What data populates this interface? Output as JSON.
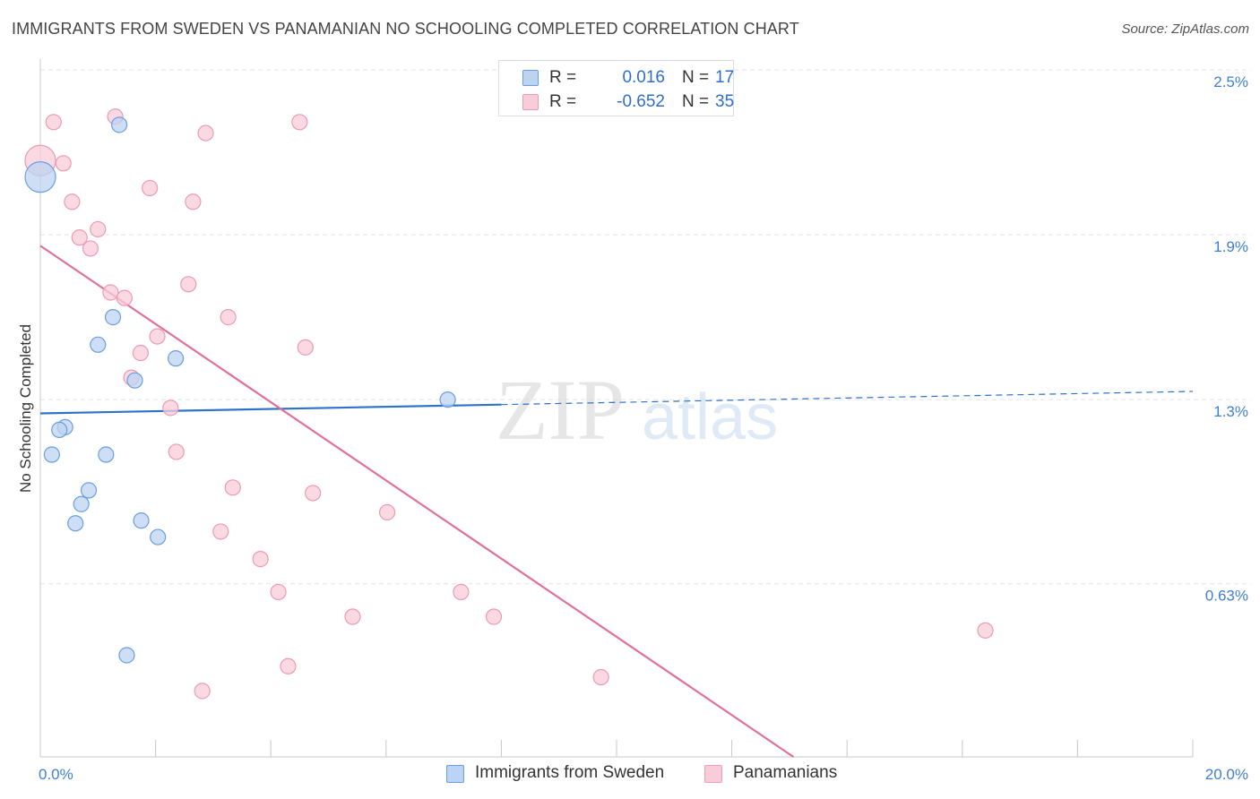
{
  "title": "IMMIGRANTS FROM SWEDEN VS PANAMANIAN NO SCHOOLING COMPLETED CORRELATION CHART",
  "source": "Source: ZipAtlas.com",
  "watermark": {
    "zip": "ZIP",
    "atlas": "atlas"
  },
  "legend_top": {
    "rows": [
      {
        "r_label": "R =",
        "r_value": "0.016",
        "n_label": "N =",
        "n_value": "17"
      },
      {
        "r_label": "R =",
        "r_value": "-0.652",
        "n_label": "N =",
        "n_value": "35"
      }
    ]
  },
  "legend_bottom": {
    "items": [
      {
        "label": "Immigrants from Sweden"
      },
      {
        "label": "Panamanians"
      }
    ]
  },
  "colors": {
    "blue_fill": "#bcd3f2",
    "blue_stroke": "#6a9ee0",
    "blue_line": "#2f72c9",
    "pink_fill": "#f9ccd9",
    "pink_stroke": "#ec9ab5",
    "pink_line": "#e0709a",
    "tick_label": "#3f7fd6",
    "grid": "#e3e3e3",
    "axis": "#c8c8c8"
  },
  "chart_data": {
    "type": "scatter",
    "title": "IMMIGRANTS FROM SWEDEN VS PANAMANIAN NO SCHOOLING COMPLETED CORRELATION CHART",
    "xlabel": "",
    "ylabel": "No Schooling Completed",
    "xlim": [
      0.0,
      20.0
    ],
    "ylim": [
      0.0,
      2.5
    ],
    "x_tick_labels": [
      "0.0%",
      "20.0%"
    ],
    "y_ticks": [
      0.63,
      1.3,
      1.9,
      2.5
    ],
    "y_tick_labels": [
      "0.63%",
      "1.3%",
      "1.9%",
      "2.5%"
    ],
    "grid": true,
    "legend_position": "top-center",
    "series": [
      {
        "name": "Immigrants from Sweden",
        "r": 0.016,
        "n": 17,
        "points": [
          {
            "x": 0.0,
            "y": 2.11,
            "big": true
          },
          {
            "x": 1.37,
            "y": 2.3
          },
          {
            "x": 1.26,
            "y": 1.6
          },
          {
            "x": 1.0,
            "y": 1.5
          },
          {
            "x": 2.35,
            "y": 1.45
          },
          {
            "x": 1.64,
            "y": 1.37
          },
          {
            "x": 7.07,
            "y": 1.3
          },
          {
            "x": 0.43,
            "y": 1.2
          },
          {
            "x": 0.33,
            "y": 1.19
          },
          {
            "x": 0.2,
            "y": 1.1
          },
          {
            "x": 1.14,
            "y": 1.1
          },
          {
            "x": 0.84,
            "y": 0.97
          },
          {
            "x": 0.71,
            "y": 0.92
          },
          {
            "x": 0.61,
            "y": 0.85
          },
          {
            "x": 1.75,
            "y": 0.86
          },
          {
            "x": 2.04,
            "y": 0.8
          },
          {
            "x": 1.5,
            "y": 0.37
          }
        ],
        "trend": {
          "x0": 0.0,
          "y0": 1.25,
          "x1": 20.0,
          "y1": 1.33,
          "solid_until": 8.0
        }
      },
      {
        "name": "Panamanians",
        "r": -0.652,
        "n": 35,
        "points": [
          {
            "x": 0.0,
            "y": 2.17,
            "big": true
          },
          {
            "x": 0.23,
            "y": 2.31
          },
          {
            "x": 1.3,
            "y": 2.33
          },
          {
            "x": 4.5,
            "y": 2.31
          },
          {
            "x": 2.87,
            "y": 2.27
          },
          {
            "x": 0.4,
            "y": 2.16
          },
          {
            "x": 1.9,
            "y": 2.07
          },
          {
            "x": 0.55,
            "y": 2.02
          },
          {
            "x": 2.65,
            "y": 2.02
          },
          {
            "x": 1.0,
            "y": 1.92
          },
          {
            "x": 0.68,
            "y": 1.89
          },
          {
            "x": 0.87,
            "y": 1.85
          },
          {
            "x": 2.57,
            "y": 1.72
          },
          {
            "x": 1.22,
            "y": 1.69
          },
          {
            "x": 1.46,
            "y": 1.67
          },
          {
            "x": 3.26,
            "y": 1.6
          },
          {
            "x": 2.03,
            "y": 1.53
          },
          {
            "x": 4.6,
            "y": 1.49
          },
          {
            "x": 1.74,
            "y": 1.47
          },
          {
            "x": 1.58,
            "y": 1.38
          },
          {
            "x": 2.26,
            "y": 1.27
          },
          {
            "x": 2.36,
            "y": 1.11
          },
          {
            "x": 3.34,
            "y": 0.98
          },
          {
            "x": 4.73,
            "y": 0.96
          },
          {
            "x": 6.02,
            "y": 0.89
          },
          {
            "x": 3.13,
            "y": 0.82
          },
          {
            "x": 3.82,
            "y": 0.72
          },
          {
            "x": 4.13,
            "y": 0.6
          },
          {
            "x": 7.3,
            "y": 0.6
          },
          {
            "x": 5.42,
            "y": 0.51
          },
          {
            "x": 7.87,
            "y": 0.51
          },
          {
            "x": 16.4,
            "y": 0.46
          },
          {
            "x": 4.3,
            "y": 0.33
          },
          {
            "x": 9.73,
            "y": 0.29
          },
          {
            "x": 2.81,
            "y": 0.24
          }
        ],
        "trend": {
          "x0": 0.0,
          "y0": 1.86,
          "x1": 13.07,
          "y1": 0.0
        }
      }
    ]
  }
}
